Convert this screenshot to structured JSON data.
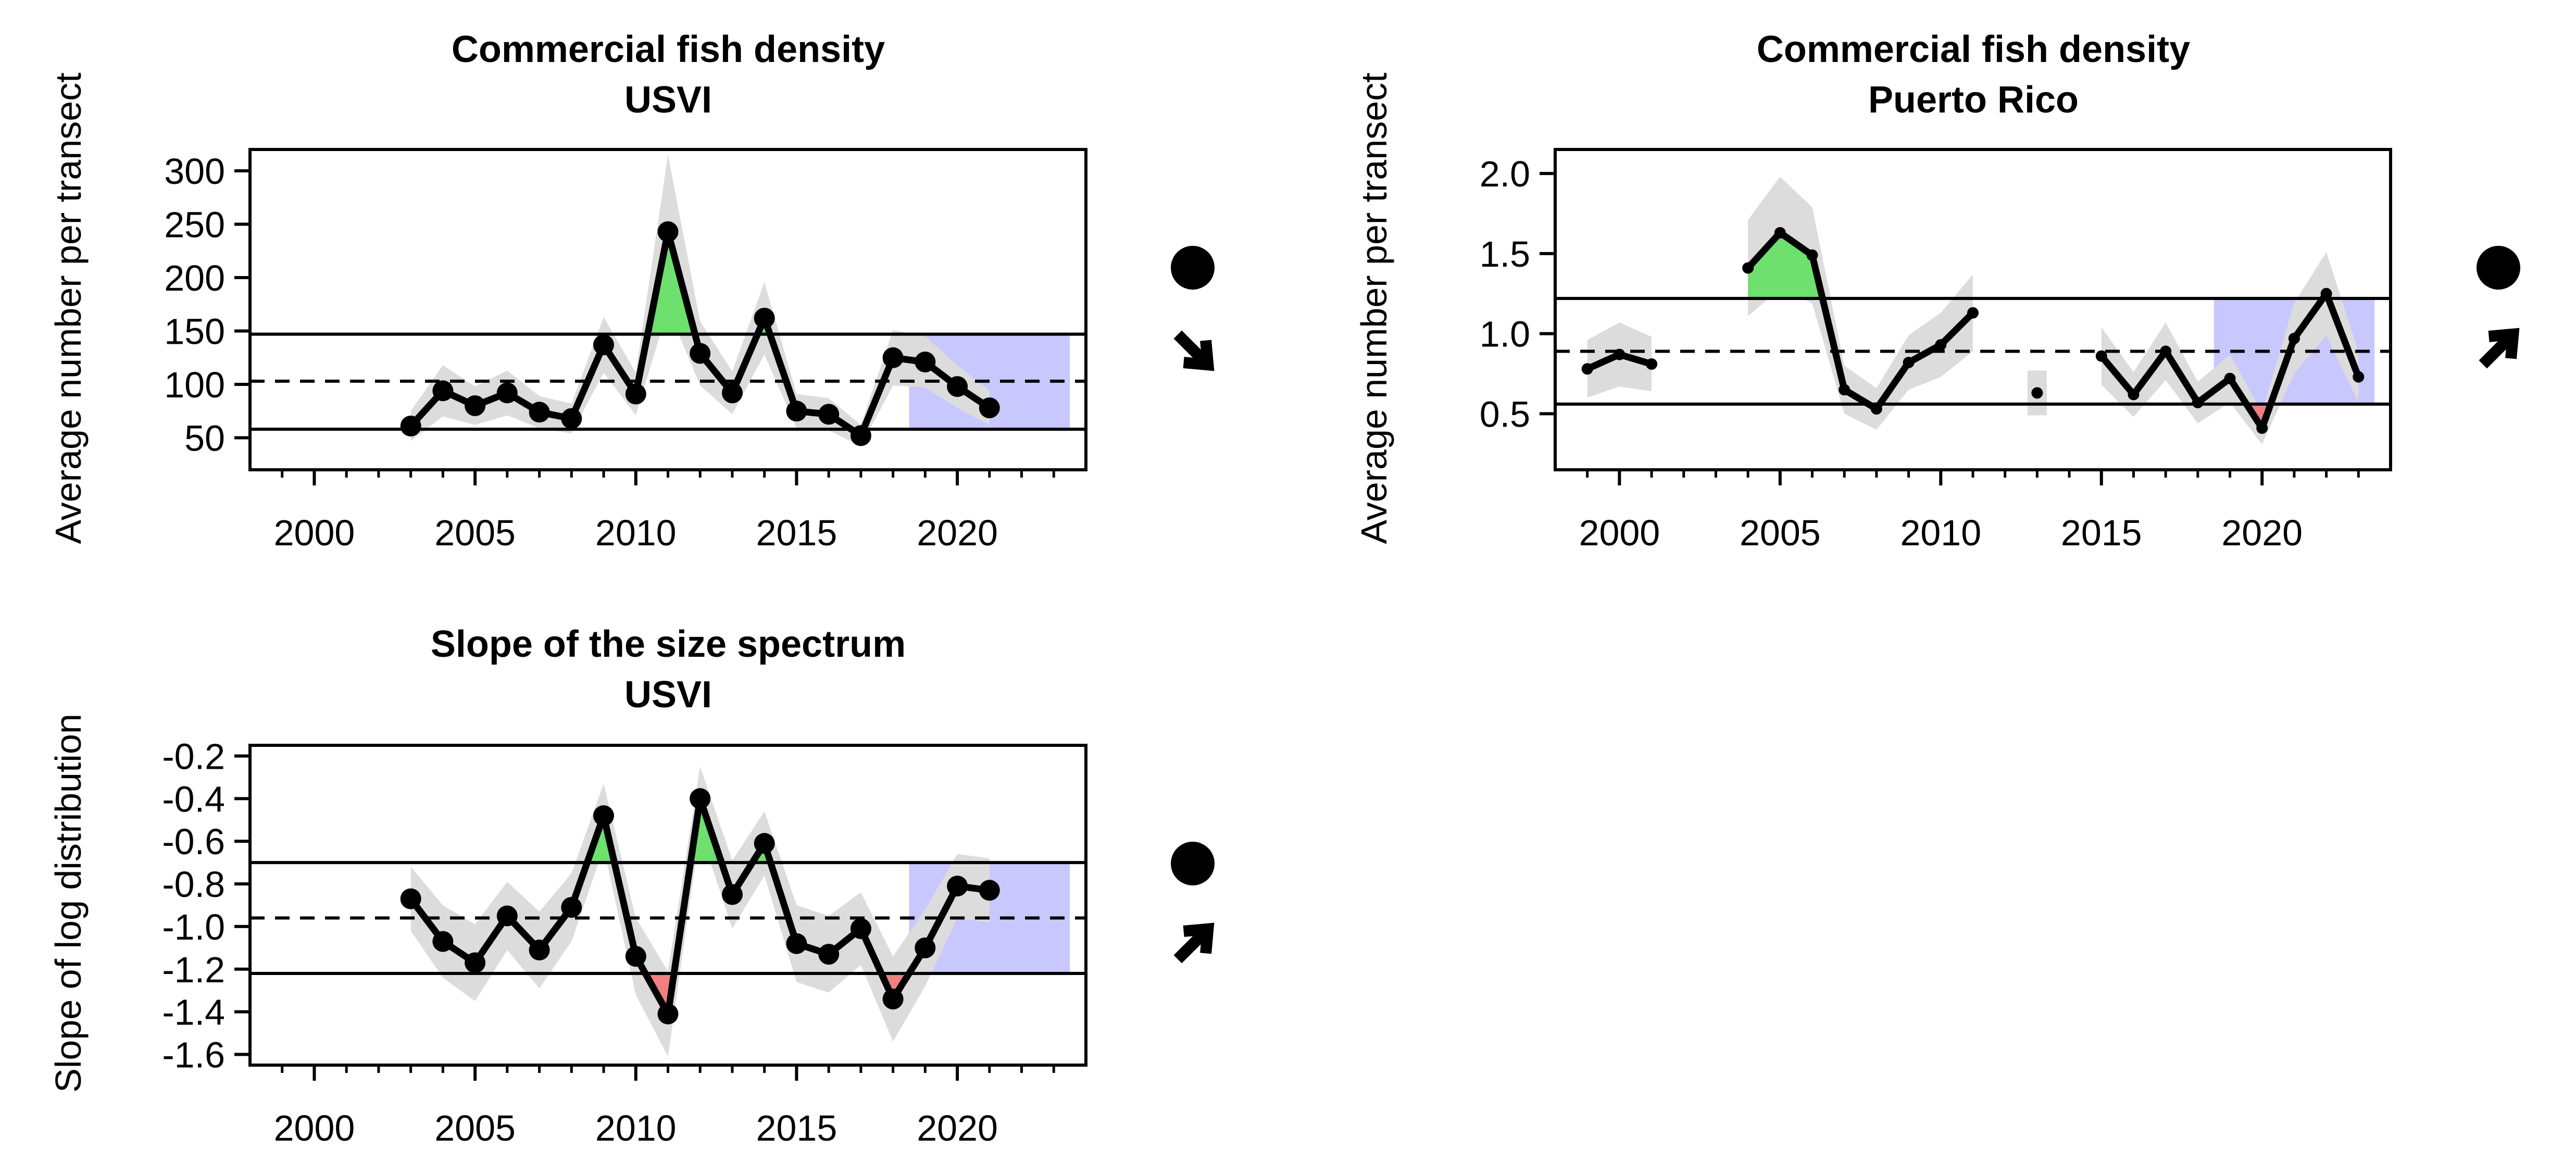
{
  "colors": {
    "above": "#6ee06e",
    "below": "#f08080",
    "recent": "#c8c8ff",
    "band": "#dcdcdc",
    "line": "#000000"
  },
  "chart_data": [
    {
      "type": "line",
      "title": "Commercial fish density",
      "subtitle": "USVI",
      "ylabel": "Average number per transect",
      "xlabel": "",
      "xlim": [
        1998,
        2024
      ],
      "ylim": [
        20,
        320
      ],
      "xticks": [
        "2000",
        "2005",
        "2010",
        "2015",
        "2020"
      ],
      "yticks": [
        "50",
        "100",
        "150",
        "200",
        "250",
        "300"
      ],
      "mean": 103,
      "upper": 147,
      "lower": 58,
      "recent_window": [
        2018.5,
        2023.5
      ],
      "x": [
        2003,
        2004,
        2005,
        2006,
        2007,
        2008,
        2009,
        2010,
        2011,
        2012,
        2013,
        2014,
        2015,
        2016,
        2017,
        2018,
        2019,
        2020,
        2021
      ],
      "y": [
        61,
        94,
        80,
        92,
        74,
        68,
        137,
        91,
        243,
        129,
        92,
        162,
        75,
        72,
        52,
        125,
        121,
        98,
        78
      ],
      "se": [
        14,
        24,
        18,
        21,
        15,
        14,
        26,
        20,
        72,
        30,
        20,
        34,
        16,
        15,
        10,
        26,
        24,
        20,
        16
      ],
      "point_size": "large",
      "trend_symbols": [
        "filled-circle",
        "arrow-down-right"
      ]
    },
    {
      "type": "line",
      "title": "Commercial fish density",
      "subtitle": "Puerto Rico",
      "ylabel": "Average number per transect",
      "xlabel": "",
      "xlim": [
        1998,
        2024
      ],
      "ylim": [
        0.15,
        2.15
      ],
      "xticks": [
        "2000",
        "2005",
        "2010",
        "2015",
        "2020"
      ],
      "yticks": [
        "0.5",
        "1.0",
        "1.5",
        "2.0"
      ],
      "mean": 0.89,
      "upper": 1.22,
      "lower": 0.56,
      "recent_window": [
        2018.5,
        2023.5
      ],
      "x": [
        1999,
        2000,
        2001,
        null,
        2004,
        2005,
        2006,
        2007,
        2008,
        2009,
        2010,
        2011,
        null,
        2013,
        null,
        2015,
        2016,
        2017,
        2018,
        2019,
        2020,
        2021,
        2022,
        2023
      ],
      "y": [
        0.78,
        0.87,
        0.81,
        null,
        1.41,
        1.63,
        1.49,
        0.65,
        0.53,
        0.82,
        0.93,
        1.13,
        null,
        0.63,
        null,
        0.86,
        0.62,
        0.89,
        0.57,
        0.72,
        0.41,
        0.97,
        1.25,
        0.73
      ],
      "se": [
        0.18,
        0.2,
        0.17,
        null,
        0.3,
        0.35,
        0.3,
        0.15,
        0.13,
        0.17,
        0.2,
        0.24,
        null,
        0.14,
        null,
        0.18,
        0.14,
        0.18,
        0.13,
        0.15,
        0.1,
        0.22,
        0.26,
        0.16
      ],
      "point_size": "small",
      "trend_symbols": [
        "filled-circle",
        "arrow-up-right"
      ]
    },
    {
      "type": "line",
      "title": "Slope of the size spectrum",
      "subtitle": "USVI",
      "ylabel": "Slope of log distribution",
      "xlabel": "",
      "xlim": [
        1998,
        2024
      ],
      "ylim": [
        -1.65,
        -0.15
      ],
      "xticks": [
        "2000",
        "2005",
        "2010",
        "2015",
        "2020"
      ],
      "yticks": [
        "-0.2",
        "-0.4",
        "-0.6",
        "-0.8",
        "-1.0",
        "-1.2",
        "-1.4",
        "-1.6"
      ],
      "mean": -0.96,
      "upper": -0.7,
      "lower": -1.22,
      "recent_window": [
        2018.5,
        2023.5
      ],
      "x": [
        2003,
        2004,
        2005,
        2006,
        2007,
        2008,
        2009,
        2010,
        2011,
        2012,
        2013,
        2014,
        2015,
        2016,
        2017,
        2018,
        2019,
        2020,
        2021
      ],
      "y": [
        -0.87,
        -1.07,
        -1.17,
        -0.95,
        -1.11,
        -0.91,
        -0.48,
        -1.14,
        -1.41,
        -0.4,
        -0.85,
        -0.61,
        -1.08,
        -1.13,
        -1.01,
        -1.34,
        -1.1,
        -0.81,
        -0.83
      ],
      "se": [
        0.15,
        0.17,
        0.18,
        0.16,
        0.18,
        0.16,
        0.15,
        0.18,
        0.2,
        0.15,
        0.16,
        0.15,
        0.18,
        0.18,
        0.17,
        0.2,
        0.18,
        0.15,
        0.15
      ],
      "point_size": "large",
      "trend_symbols": [
        "filled-circle",
        "arrow-up-right"
      ]
    }
  ]
}
